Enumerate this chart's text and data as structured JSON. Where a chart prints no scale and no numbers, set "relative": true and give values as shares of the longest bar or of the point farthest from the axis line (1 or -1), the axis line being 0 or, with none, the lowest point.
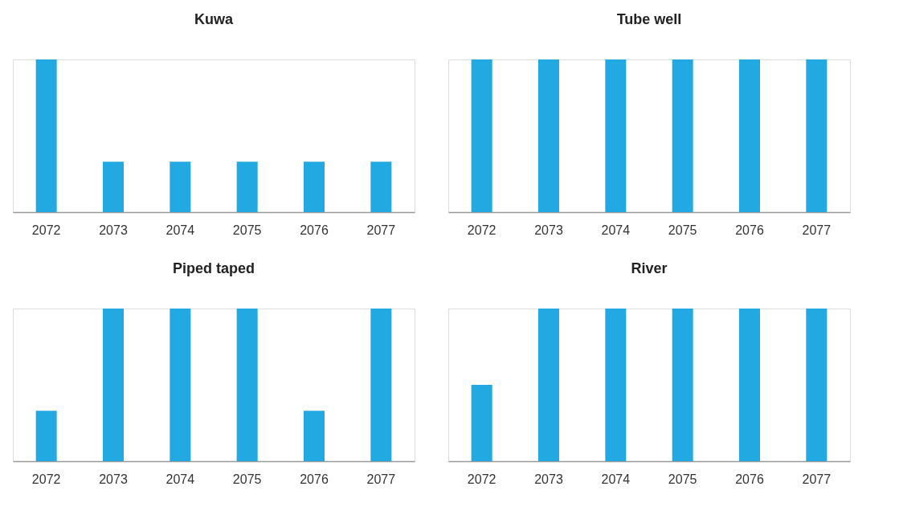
{
  "chart_data": [
    {
      "type": "bar",
      "title": "Kuwa",
      "categories": [
        "2072",
        "2073",
        "2074",
        "2075",
        "2076",
        "2077"
      ],
      "values": [
        1,
        0.33,
        0.33,
        0.33,
        0.33,
        0.33
      ],
      "color": "#23a9e1",
      "relative": true,
      "grid": false
    },
    {
      "type": "bar",
      "title": "Tube well",
      "categories": [
        "2072",
        "2073",
        "2074",
        "2075",
        "2076",
        "2077"
      ],
      "values": [
        1,
        1,
        1,
        1,
        1,
        1
      ],
      "color": "#23a9e1",
      "relative": true,
      "grid": false
    },
    {
      "type": "bar",
      "title": "Piped taped",
      "categories": [
        "2072",
        "2073",
        "2074",
        "2075",
        "2076",
        "2077"
      ],
      "values": [
        0.33,
        1,
        1,
        1,
        0.33,
        1
      ],
      "color": "#23a9e1",
      "relative": true,
      "grid": false
    },
    {
      "type": "bar",
      "title": "River",
      "categories": [
        "2072",
        "2073",
        "2074",
        "2075",
        "2076",
        "2077"
      ],
      "values": [
        0.5,
        1,
        1,
        1,
        1,
        1
      ],
      "color": "#23a9e1",
      "relative": true,
      "grid": false
    }
  ]
}
